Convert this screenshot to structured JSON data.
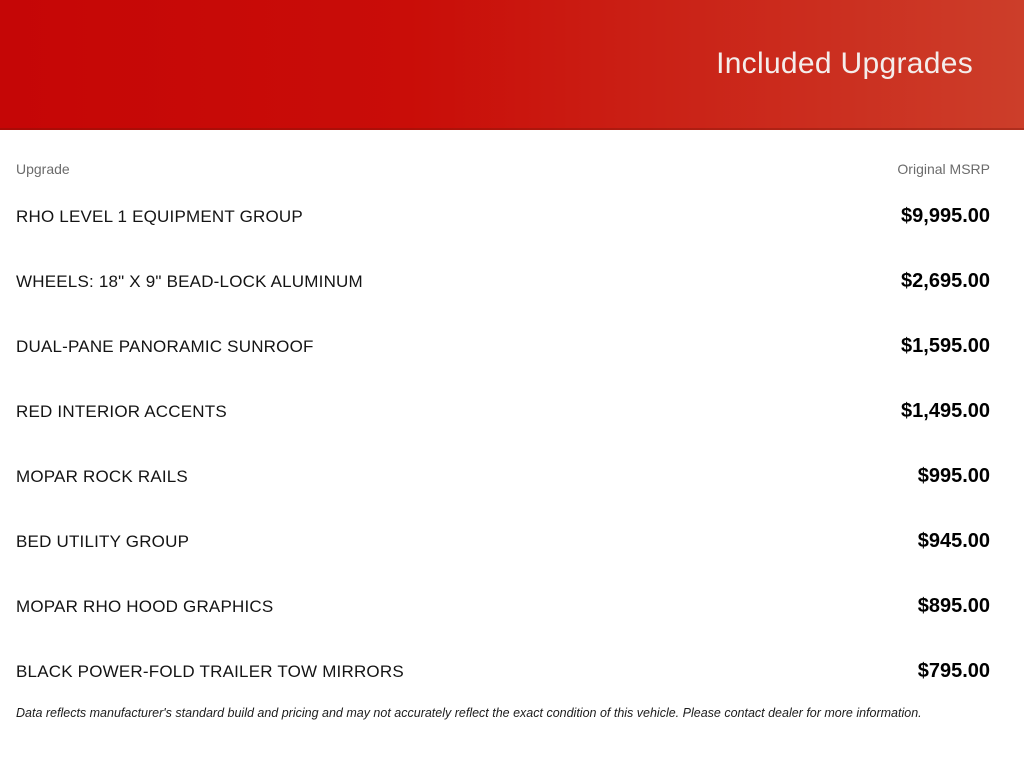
{
  "header": {
    "title": "Included Upgrades",
    "gradient_start": "#c50606",
    "gradient_end": "#cc3e2a",
    "title_color": "#f4edeb"
  },
  "table": {
    "columns": {
      "upgrade": "Upgrade",
      "msrp": "Original MSRP"
    },
    "rows": [
      {
        "name": "RHO LEVEL 1 EQUIPMENT GROUP",
        "price": "$9,995.00"
      },
      {
        "name": "WHEELS: 18\" X 9\" BEAD-LOCK ALUMINUM",
        "price": "$2,695.00"
      },
      {
        "name": "DUAL-PANE PANORAMIC SUNROOF",
        "price": "$1,595.00"
      },
      {
        "name": "RED INTERIOR ACCENTS",
        "price": "$1,495.00"
      },
      {
        "name": "MOPAR ROCK RAILS",
        "price": "$995.00"
      },
      {
        "name": "BED UTILITY GROUP",
        "price": "$945.00"
      },
      {
        "name": "MOPAR RHO HOOD GRAPHICS",
        "price": "$895.00"
      },
      {
        "name": "BLACK POWER-FOLD TRAILER TOW MIRRORS",
        "price": "$795.00"
      }
    ]
  },
  "footer": {
    "disclaimer": "Data reflects manufacturer's standard build and pricing and may not accurately reflect the exact condition of this vehicle. Please contact dealer for more information."
  }
}
